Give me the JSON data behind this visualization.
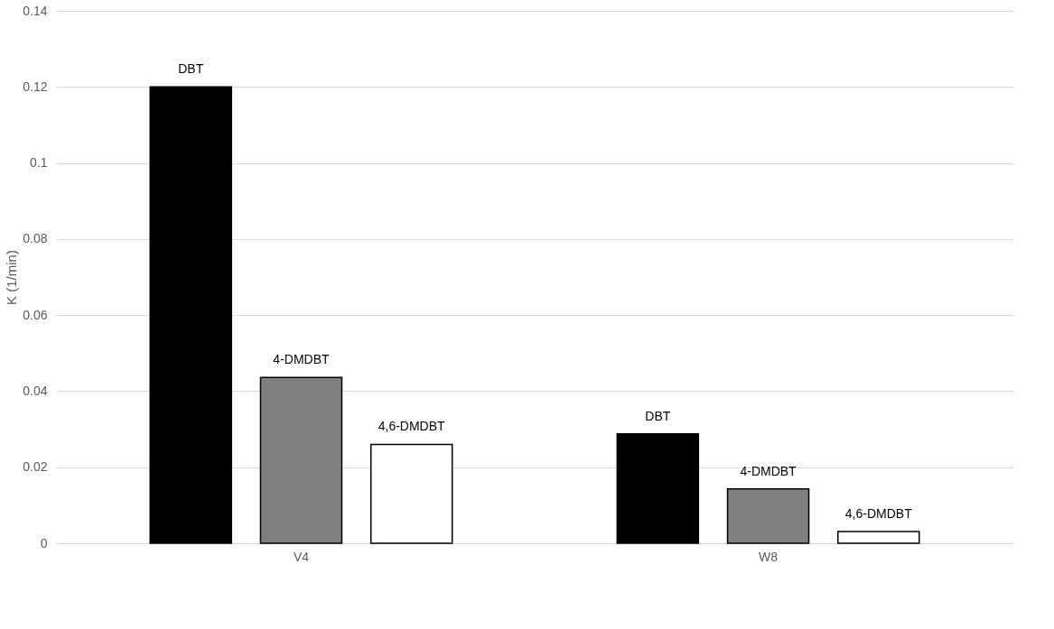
{
  "chart_data": {
    "type": "bar",
    "ylabel": "K (1/min)",
    "categories": [
      "V4",
      "W8"
    ],
    "series": [
      {
        "name": "DBT",
        "color": "#000000",
        "values": [
          0.12,
          0.0288
        ]
      },
      {
        "name": "4-DMDBT",
        "color": "#808080",
        "values": [
          0.0436,
          0.0143
        ]
      },
      {
        "name": "4,6-DMDBT",
        "color": "#ffffff",
        "values": [
          0.026,
          0.0031
        ]
      }
    ],
    "ylim": [
      0,
      0.14
    ],
    "yticks": [
      0,
      0.02,
      0.04,
      0.06,
      0.08,
      0.1,
      0.12,
      0.14
    ],
    "grid": "y",
    "legend": false
  }
}
